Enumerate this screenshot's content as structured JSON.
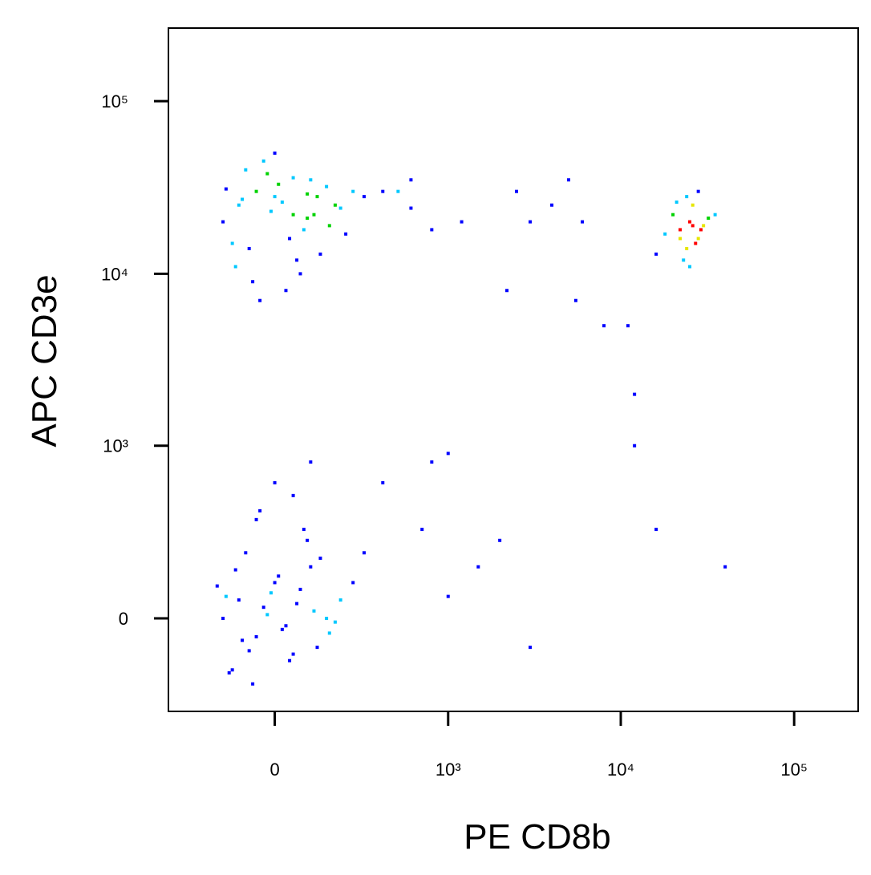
{
  "chart_data": {
    "type": "scatter",
    "xlabel": "PE CD8b",
    "ylabel": "APC CD3e",
    "xscale": "biexponential",
    "yscale": "biexponential",
    "xlim": [
      -390,
      234000
    ],
    "ylim": [
      -320,
      265000
    ],
    "xticks": [
      0,
      {
        "value": 1000,
        "label": "10³"
      },
      {
        "value": 10000,
        "label": "10⁴"
      },
      {
        "value": 100000,
        "label": "10⁵"
      }
    ],
    "yticks": [
      0,
      {
        "value": 1000,
        "label": "10³"
      },
      {
        "value": 10000,
        "label": "10⁴"
      },
      {
        "value": 100000,
        "label": "10⁵"
      }
    ],
    "series": [
      {
        "color": "#0000ff",
        "x": [
          -100,
          -50,
          0,
          50,
          100,
          -150,
          -80,
          20,
          80,
          150,
          200,
          -120,
          -30,
          60,
          120,
          -60,
          10,
          90,
          250,
          -90,
          40,
          -20,
          70,
          180,
          -140,
          30,
          110,
          -70,
          0,
          160,
          300,
          -110,
          50,
          -40,
          90,
          220,
          -10,
          130,
          400,
          600,
          22000,
          25000,
          28000,
          20000,
          30000,
          24000,
          26000,
          18000,
          32000,
          23000,
          27000,
          21000,
          29000,
          25000,
          35000,
          16000,
          24000,
          26000,
          22000,
          28000,
          -150,
          -100,
          -50,
          0,
          50,
          100,
          150,
          -120,
          -80,
          -30,
          20,
          70,
          120,
          -140,
          -60,
          10,
          80,
          200,
          -90,
          -20,
          40,
          110,
          -170,
          -40,
          30,
          90,
          160,
          -110,
          -70,
          0,
          60,
          130,
          250,
          -130,
          -10,
          50,
          180,
          -50,
          100,
          300,
          500,
          800,
          1200,
          2000,
          3000,
          5000,
          800,
          1500,
          6000,
          12000,
          400,
          600,
          2500,
          4000,
          12000,
          8000,
          16000,
          40000,
          1000,
          700,
          3000,
          1000,
          11000,
          5500,
          2200
        ],
        "values": [
          25000,
          30000,
          28000,
          22000,
          35000,
          20000,
          40000,
          26000,
          18000,
          32000,
          24000,
          15000,
          45000,
          12000,
          28000,
          9000,
          33000,
          21000,
          30000,
          27000,
          16000,
          38000,
          10000,
          25000,
          31000,
          8000,
          22000,
          14000,
          50000,
          19000,
          28000,
          11000,
          36000,
          7000,
          29000,
          17000,
          23000,
          13000,
          30000,
          24000,
          18000,
          20000,
          16000,
          22000,
          19000,
          14000,
          25000,
          17000,
          21000,
          12000,
          15000,
          26000,
          18000,
          11000,
          22000,
          13000,
          28000,
          19000,
          16000,
          30000,
          0,
          50,
          -50,
          100,
          -100,
          150,
          0,
          -150,
          200,
          30,
          -30,
          80,
          -80,
          60,
          -200,
          120,
          300,
          50,
          -60,
          10,
          -120,
          20,
          90,
          400,
          -20,
          250,
          -40,
          140,
          -90,
          600,
          40,
          180,
          100,
          -160,
          70,
          500,
          -10,
          350,
          800,
          200,
          30000,
          18000,
          20000,
          250,
          20000,
          35000,
          800,
          150,
          20000,
          2000,
          600,
          35000,
          30000,
          25000,
          1000,
          5000,
          300,
          150,
          900,
          300,
          -80,
          60,
          5000,
          7000,
          8000
        ]
      }
    ]
  }
}
